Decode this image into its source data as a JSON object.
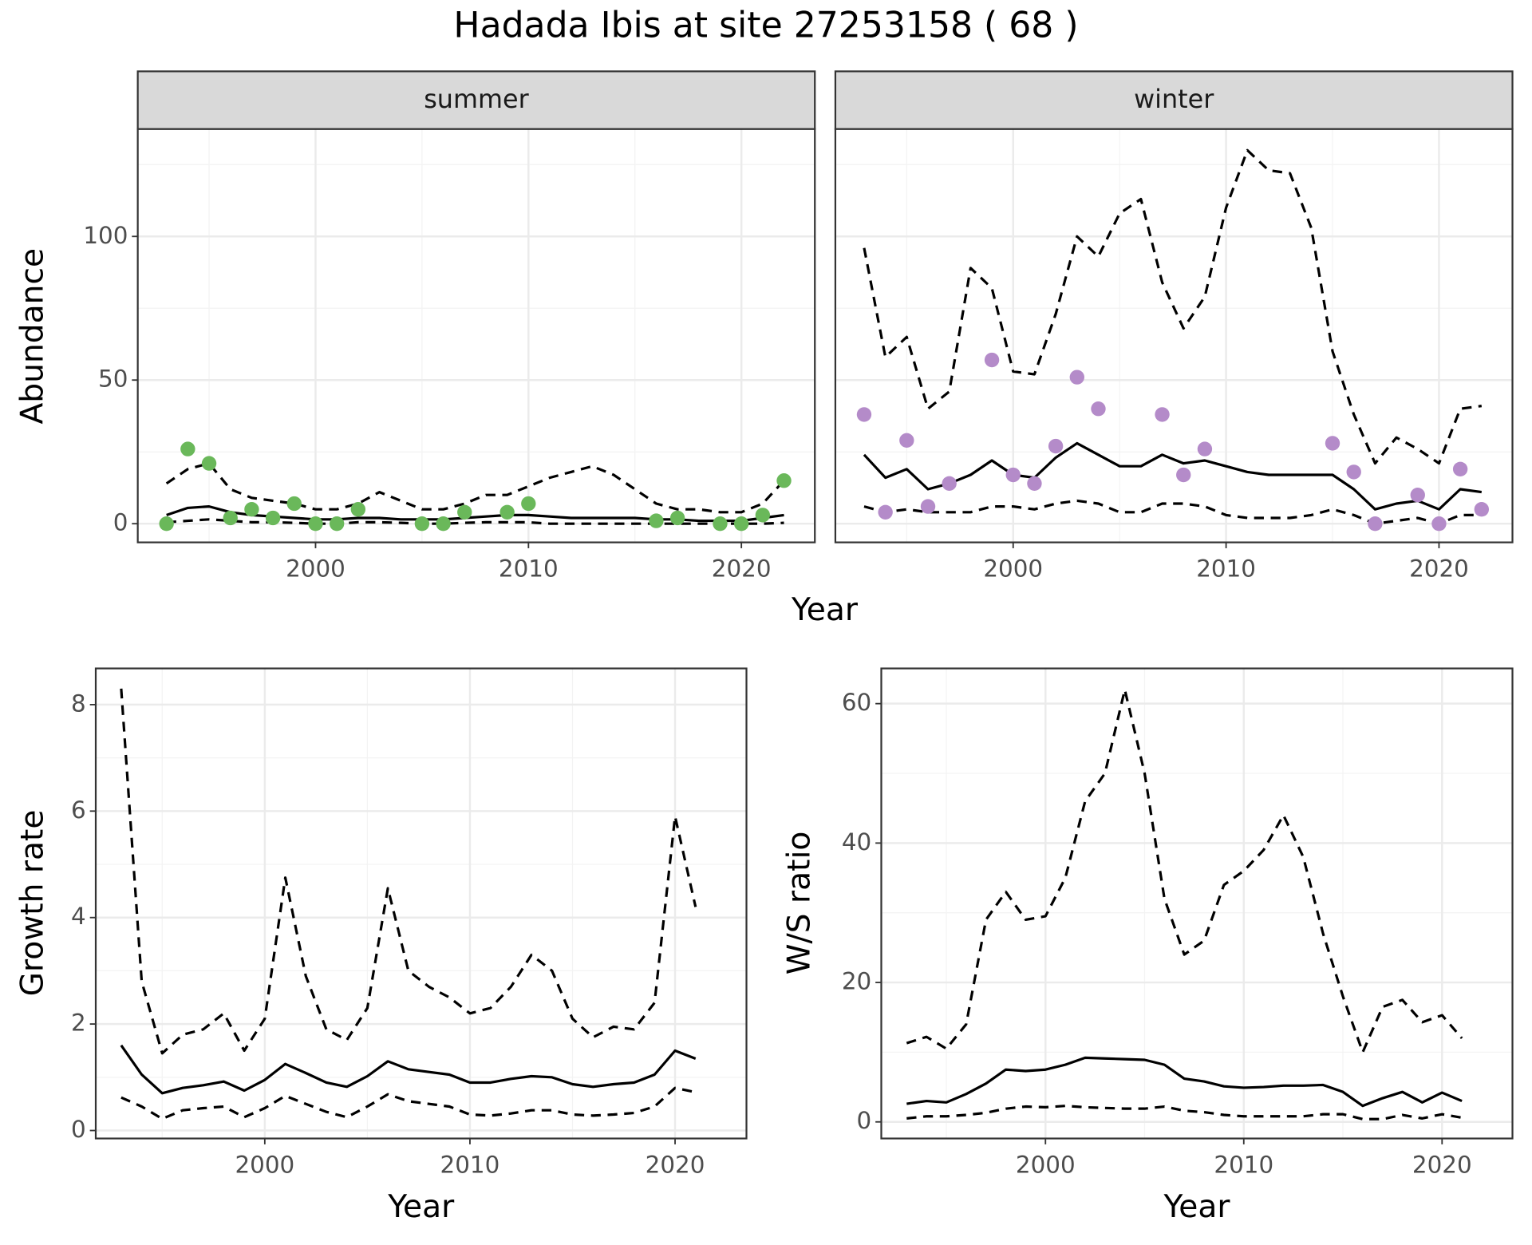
{
  "title": "Hadada Ibis at site 27253158 ( 68 )",
  "chart_data": [
    {
      "type": "line",
      "panel": "summer",
      "ylabel": "Abundance",
      "xlabel": "Year",
      "xlim": [
        1991.65,
        2023.45
      ],
      "xticks": [
        2000,
        2010,
        2020
      ],
      "ylim": [
        -6.5,
        137.4
      ],
      "yticks": [
        0,
        50,
        100
      ],
      "grid": true,
      "x": [
        1993,
        1994,
        1995,
        1996,
        1997,
        1998,
        1999,
        2000,
        2001,
        2002,
        2003,
        2004,
        2005,
        2006,
        2007,
        2008,
        2009,
        2010,
        2011,
        2012,
        2013,
        2014,
        2015,
        2016,
        2017,
        2018,
        2019,
        2020,
        2021,
        2022
      ],
      "series": [
        {
          "color": "#000000",
          "line_style": "dashed",
          "values": [
            14,
            19,
            21,
            12,
            9,
            8,
            7,
            5,
            5,
            7,
            11,
            8,
            5,
            5,
            7,
            10,
            10,
            13,
            16,
            18,
            20,
            17,
            12,
            7,
            5,
            5,
            4,
            4,
            7,
            15
          ]
        },
        {
          "color": "#000000",
          "line_style": "solid",
          "values": [
            3,
            5.5,
            6,
            4,
            3,
            2.5,
            2,
            1.5,
            1.5,
            2,
            2,
            1.5,
            1.5,
            1.5,
            2,
            2.5,
            3,
            3,
            2.5,
            2,
            2,
            2,
            2,
            1.5,
            1.5,
            1,
            1,
            1,
            2,
            3
          ]
        },
        {
          "color": "#000000",
          "line_style": "dashed",
          "values": [
            0.5,
            1,
            1.5,
            1,
            0.5,
            0.5,
            0.3,
            0,
            0,
            0.5,
            0.5,
            0.3,
            0,
            0,
            0.3,
            0.5,
            0.5,
            0.5,
            0,
            0,
            0,
            0,
            0,
            0,
            0,
            0,
            0,
            0,
            0,
            0.3
          ]
        }
      ],
      "points": {
        "color": "#6ab85a",
        "x": [
          1993,
          1994,
          1995,
          1996,
          1997,
          1998,
          1999,
          2000,
          2001,
          2002,
          2005,
          2006,
          2007,
          2009,
          2010,
          2016,
          2017,
          2019,
          2020,
          2021,
          2022
        ],
        "values": [
          0,
          26,
          21,
          2,
          5,
          2,
          7,
          0,
          0,
          5,
          0,
          0,
          4,
          4,
          7,
          1,
          2,
          0,
          0,
          3,
          15
        ]
      }
    },
    {
      "type": "line",
      "panel": "winter",
      "ytick_labels": false,
      "xlim": [
        1991.65,
        2023.45
      ],
      "xticks": [
        2000,
        2010,
        2020
      ],
      "ylim": [
        -6.5,
        137.4
      ],
      "yticks": [
        0,
        50,
        100
      ],
      "grid": true,
      "x": [
        1993,
        1994,
        1995,
        1996,
        1997,
        1998,
        1999,
        2000,
        2001,
        2002,
        2003,
        2004,
        2005,
        2006,
        2007,
        2008,
        2009,
        2010,
        2011,
        2012,
        2013,
        2014,
        2015,
        2016,
        2017,
        2018,
        2019,
        2020,
        2021,
        2022
      ],
      "series": [
        {
          "color": "#000000",
          "line_style": "dashed",
          "values": [
            96,
            58,
            65,
            40,
            46,
            89,
            82,
            53,
            52,
            73,
            100,
            93,
            108,
            113,
            84,
            68,
            79,
            110,
            130,
            123,
            122,
            103,
            60,
            38,
            21,
            30,
            26,
            21,
            40,
            41
          ]
        },
        {
          "color": "#000000",
          "line_style": "solid",
          "values": [
            24,
            16,
            19,
            12,
            14,
            17,
            22,
            17,
            16,
            23,
            28,
            24,
            20,
            20,
            24,
            21,
            22,
            20,
            18,
            17,
            17,
            17,
            17,
            12,
            5,
            7,
            8,
            5,
            12,
            11
          ]
        },
        {
          "color": "#000000",
          "line_style": "dashed",
          "values": [
            6,
            4,
            5,
            4,
            4,
            4,
            6,
            6,
            5,
            7,
            8,
            7,
            4,
            4,
            7,
            7,
            6,
            3,
            2,
            2,
            2,
            3,
            5,
            3,
            0,
            1,
            2,
            0,
            3,
            3
          ]
        }
      ],
      "points": {
        "color": "#b48bc9",
        "x": [
          1993,
          1994,
          1995,
          1996,
          1997,
          1999,
          2000,
          2001,
          2002,
          2003,
          2004,
          2007,
          2008,
          2009,
          2015,
          2016,
          2017,
          2019,
          2020,
          2021,
          2022
        ],
        "values": [
          38,
          4,
          29,
          6,
          14,
          57,
          17,
          14,
          27,
          51,
          40,
          38,
          17,
          26,
          28,
          18,
          0,
          10,
          0,
          19,
          5
        ]
      }
    },
    {
      "type": "line",
      "ylabel": "Growth rate",
      "xlabel": "Year",
      "xlim": [
        1991.76,
        2023.48
      ],
      "xticks": [
        2000,
        2010,
        2020
      ],
      "ylim": [
        -0.15,
        8.68
      ],
      "yticks": [
        0,
        2,
        4,
        6,
        8
      ],
      "grid": true,
      "x": [
        1993,
        1994,
        1995,
        1996,
        1997,
        1998,
        1999,
        2000,
        2001,
        2002,
        2003,
        2004,
        2005,
        2006,
        2007,
        2008,
        2009,
        2010,
        2011,
        2012,
        2013,
        2014,
        2015,
        2016,
        2017,
        2018,
        2019,
        2020,
        2021
      ],
      "series": [
        {
          "color": "#000000",
          "line_style": "dashed",
          "values": [
            8.3,
            2.8,
            1.45,
            1.8,
            1.9,
            2.2,
            1.5,
            2.1,
            4.75,
            2.9,
            1.9,
            1.7,
            2.3,
            4.55,
            3.0,
            2.7,
            2.5,
            2.2,
            2.3,
            2.7,
            3.3,
            3.0,
            2.1,
            1.75,
            1.95,
            1.9,
            2.4,
            5.9,
            4.2
          ]
        },
        {
          "color": "#000000",
          "line_style": "solid",
          "values": [
            1.6,
            1.05,
            0.7,
            0.8,
            0.85,
            0.92,
            0.75,
            0.95,
            1.25,
            1.08,
            0.9,
            0.82,
            1.02,
            1.3,
            1.15,
            1.1,
            1.05,
            0.9,
            0.9,
            0.97,
            1.02,
            1.0,
            0.87,
            0.82,
            0.87,
            0.9,
            1.05,
            1.5,
            1.35
          ]
        },
        {
          "color": "#000000",
          "line_style": "dashed",
          "values": [
            0.62,
            0.45,
            0.22,
            0.38,
            0.42,
            0.45,
            0.25,
            0.42,
            0.65,
            0.5,
            0.35,
            0.25,
            0.45,
            0.68,
            0.55,
            0.5,
            0.45,
            0.3,
            0.28,
            0.32,
            0.38,
            0.38,
            0.3,
            0.28,
            0.3,
            0.33,
            0.45,
            0.8,
            0.72
          ]
        }
      ]
    },
    {
      "type": "line",
      "ylabel": "W/S ratio",
      "xlabel": "Year",
      "xlim": [
        1991.72,
        2023.55
      ],
      "xticks": [
        2000,
        2010,
        2020
      ],
      "ylim": [
        -2.38,
        65.05
      ],
      "yticks": [
        0,
        20,
        40,
        60
      ],
      "grid": true,
      "x": [
        1993,
        1994,
        1995,
        1996,
        1997,
        1998,
        1999,
        2000,
        2001,
        2002,
        2003,
        2004,
        2005,
        2006,
        2007,
        2008,
        2009,
        2010,
        2011,
        2012,
        2013,
        2014,
        2015,
        2016,
        2017,
        2018,
        2019,
        2020,
        2021
      ],
      "series": [
        {
          "color": "#000000",
          "line_style": "dashed",
          "values": [
            11.3,
            12.2,
            10.5,
            14,
            29,
            33,
            29,
            29.5,
            35,
            46,
            50,
            62,
            50,
            32,
            24,
            26,
            34,
            36,
            39,
            44,
            38,
            27,
            18,
            10,
            16.5,
            17.5,
            14.3,
            15.3,
            12
          ]
        },
        {
          "color": "#000000",
          "line_style": "solid",
          "values": [
            2.6,
            3,
            2.8,
            4,
            5.5,
            7.5,
            7.3,
            7.5,
            8.2,
            9.2,
            9.1,
            9,
            8.9,
            8.2,
            6.2,
            5.8,
            5.1,
            4.9,
            5,
            5.2,
            5.2,
            5.3,
            4.3,
            2.3,
            3.4,
            4.3,
            2.8,
            4.2,
            3
          ]
        },
        {
          "color": "#000000",
          "line_style": "dashed",
          "values": [
            0.5,
            0.8,
            0.8,
            1,
            1.3,
            1.9,
            2.2,
            2.1,
            2.3,
            2.1,
            2,
            1.9,
            1.9,
            2.2,
            1.6,
            1.4,
            1,
            0.8,
            0.8,
            0.8,
            0.8,
            1.1,
            1.1,
            0.4,
            0.4,
            1,
            0.5,
            1.1,
            0.6
          ]
        }
      ]
    }
  ]
}
